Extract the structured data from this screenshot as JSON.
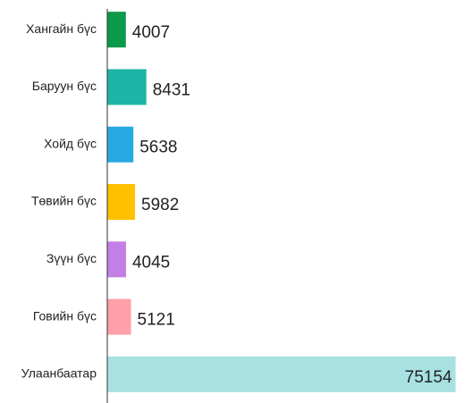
{
  "chart_data": {
    "type": "bar",
    "orientation": "horizontal",
    "categories": [
      "Хангайн бүс",
      "Баруун бүс",
      "Хойд бүс",
      "Төвийн бүс",
      "Зүүн бүс",
      "Говийн бүс",
      "Улаанбаатар"
    ],
    "values": [
      4007,
      8431,
      5638,
      5982,
      4045,
      5121,
      75154
    ],
    "colors": [
      "#0a9a4a",
      "#1db5a6",
      "#27a9e1",
      "#ffc000",
      "#c27fe6",
      "#ff9fa8",
      "#a7e1e1"
    ],
    "xlim": [
      0,
      76000
    ]
  }
}
